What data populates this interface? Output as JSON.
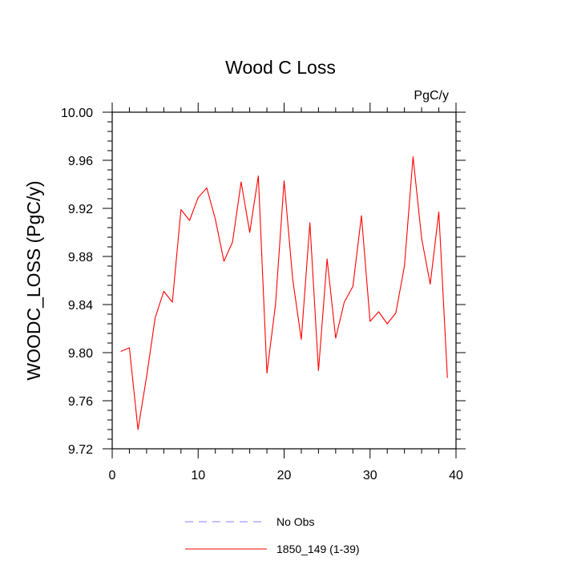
{
  "chart_data": {
    "type": "line",
    "title": "Wood C Loss",
    "units_label": "PgC/y",
    "xlabel": "",
    "ylabel": "WOODC_LOSS  (PgC/y)",
    "xlim": [
      0,
      40
    ],
    "ylim": [
      9.72,
      10.0
    ],
    "x_ticks": [
      "0",
      "10",
      "20",
      "30",
      "40"
    ],
    "y_ticks": [
      "9.72",
      "9.76",
      "9.80",
      "9.84",
      "9.88",
      "9.92",
      "9.96",
      "10.00"
    ],
    "grid": false,
    "legend_position": "bottom",
    "legend": [
      {
        "name": "No Obs",
        "color": "#8080ff",
        "style": "dashed"
      },
      {
        "name": "1850_149 (1-39)",
        "color": "#ff0000",
        "style": "solid"
      }
    ],
    "series": [
      {
        "name": "1850_149 (1-39)",
        "color": "#ff0000",
        "x": [
          1,
          2,
          3,
          4,
          5,
          6,
          7,
          8,
          9,
          10,
          11,
          12,
          13,
          14,
          15,
          16,
          17,
          18,
          19,
          20,
          21,
          22,
          23,
          24,
          25,
          26,
          27,
          28,
          29,
          30,
          31,
          32,
          33,
          34,
          35,
          36,
          37,
          38,
          39
        ],
        "y": [
          9.801,
          9.804,
          9.736,
          9.78,
          9.829,
          9.851,
          9.842,
          9.919,
          9.91,
          9.929,
          9.937,
          9.911,
          9.876,
          9.892,
          9.942,
          9.9,
          9.947,
          9.783,
          9.84,
          9.943,
          9.861,
          9.811,
          9.908,
          9.785,
          9.878,
          9.812,
          9.842,
          9.855,
          9.914,
          9.826,
          9.834,
          9.824,
          9.833,
          9.872,
          9.963,
          9.895,
          9.857,
          9.917,
          9.779
        ]
      }
    ]
  }
}
